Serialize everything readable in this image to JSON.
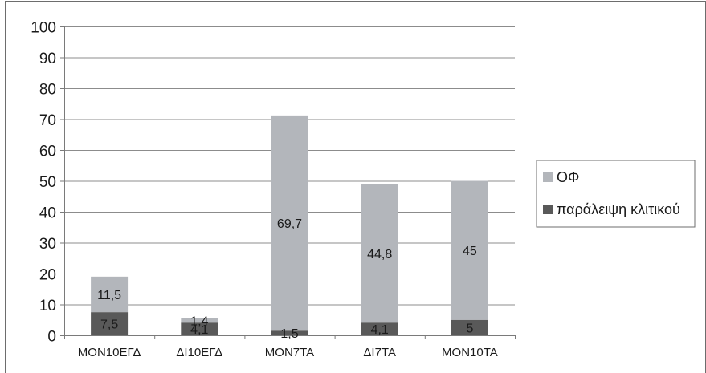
{
  "chart_data": {
    "type": "bar",
    "stacked": true,
    "categories": [
      "MON10ΕΓΔ",
      "ΔΙ10ΕΓΔ",
      "MON7TA",
      "ΔΙ7TA",
      "MON10TA"
    ],
    "series": [
      {
        "name": "παράλειψη κλιτικού",
        "values": [
          7.5,
          4.1,
          1.5,
          4.1,
          5
        ],
        "labels": [
          "7,5",
          "4,1",
          "1,5",
          "4,1",
          "5"
        ],
        "color": "#595959"
      },
      {
        "name": "ΟΦ",
        "values": [
          11.5,
          1.4,
          69.7,
          44.8,
          45
        ],
        "labels": [
          "11,5",
          "1,4",
          "69,7",
          "44,8",
          "45"
        ],
        "color": "#b3b6bb"
      }
    ],
    "ylim": [
      0,
      100
    ],
    "yticks": [
      0,
      10,
      20,
      30,
      40,
      50,
      60,
      70,
      80,
      90,
      100
    ],
    "grid": true,
    "legend_position": "right",
    "title": "",
    "xlabel": "",
    "ylabel": ""
  }
}
